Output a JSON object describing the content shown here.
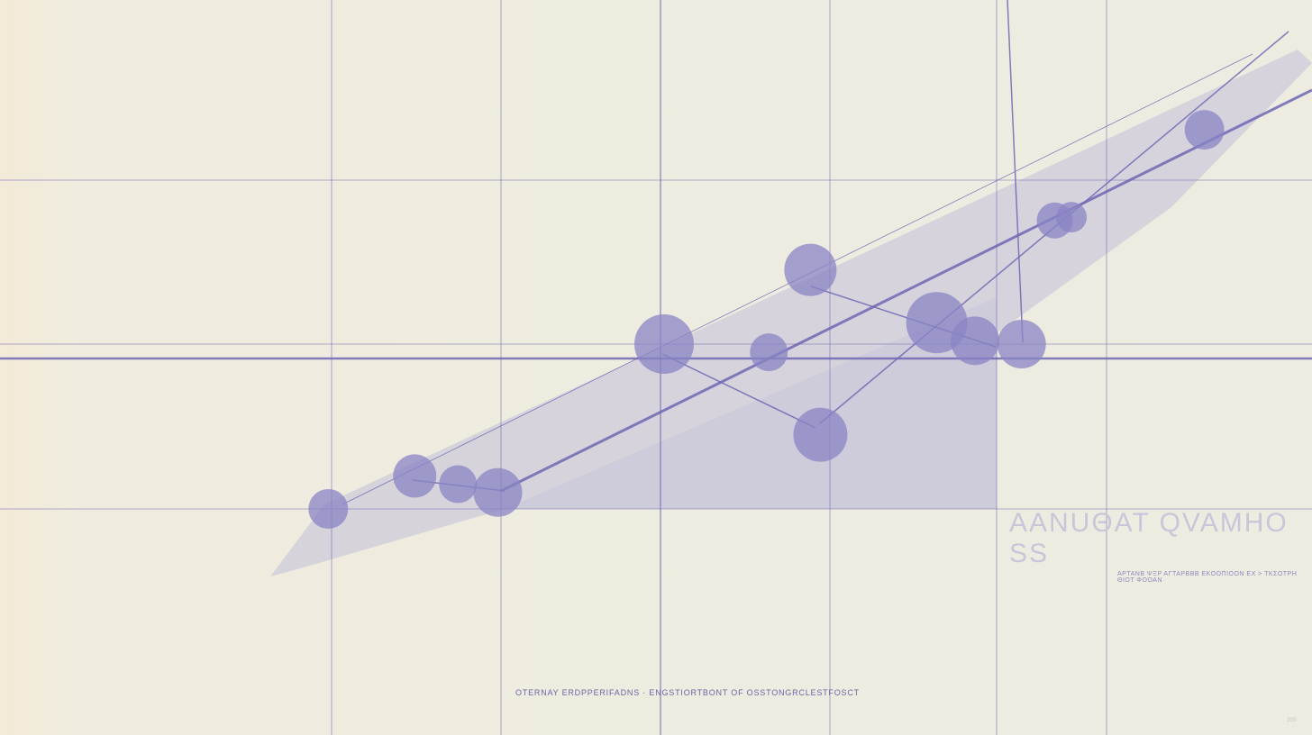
{
  "chart_data": {
    "type": "scatter",
    "title": "AANUΘAT QVAMHO SS",
    "subtitle": "ΑΡΤΑΝΒ ΨΞΡ ΑΓΤΑΡΒΒΒ ΕΚΟΟΠΙΟΟΝ ΕΧ > ΤΚΣΟΤΡΗ ΘΙΟΤ ΦΟΟΑΝ",
    "caption": "OTERNAY ERDPPERIFADNS · ENGSTIORTBONT OF OSSTONGRCLESTFOSCT",
    "page_mark": "20S",
    "xlabel": "",
    "ylabel": "",
    "grid": true,
    "colors": {
      "marker": "#8a84c4",
      "line": "#6f68b4",
      "band": "#b9b5d8",
      "background": "#eeece0"
    },
    "points": [
      {
        "x": 0.98,
        "y": 0.0,
        "size": 22
      },
      {
        "x": 1.5,
        "y": 0.2,
        "size": 24
      },
      {
        "x": 1.76,
        "y": 0.15,
        "size": 21
      },
      {
        "x": 2.0,
        "y": 0.1,
        "size": 27
      },
      {
        "x": 3.0,
        "y": 1.0,
        "size": 33
      },
      {
        "x": 3.63,
        "y": 0.95,
        "size": 21
      },
      {
        "x": 3.88,
        "y": 1.45,
        "size": 29
      },
      {
        "x": 3.94,
        "y": 0.45,
        "size": 30
      },
      {
        "x": 4.64,
        "y": 1.13,
        "size": 34
      },
      {
        "x": 4.87,
        "y": 1.02,
        "size": 27
      },
      {
        "x": 5.15,
        "y": 1.0,
        "size": 27
      },
      {
        "x": 5.35,
        "y": 1.75,
        "size": 20
      },
      {
        "x": 5.45,
        "y": 1.77,
        "size": 17
      },
      {
        "x": 6.25,
        "y": 2.3,
        "size": 22
      }
    ]
  }
}
